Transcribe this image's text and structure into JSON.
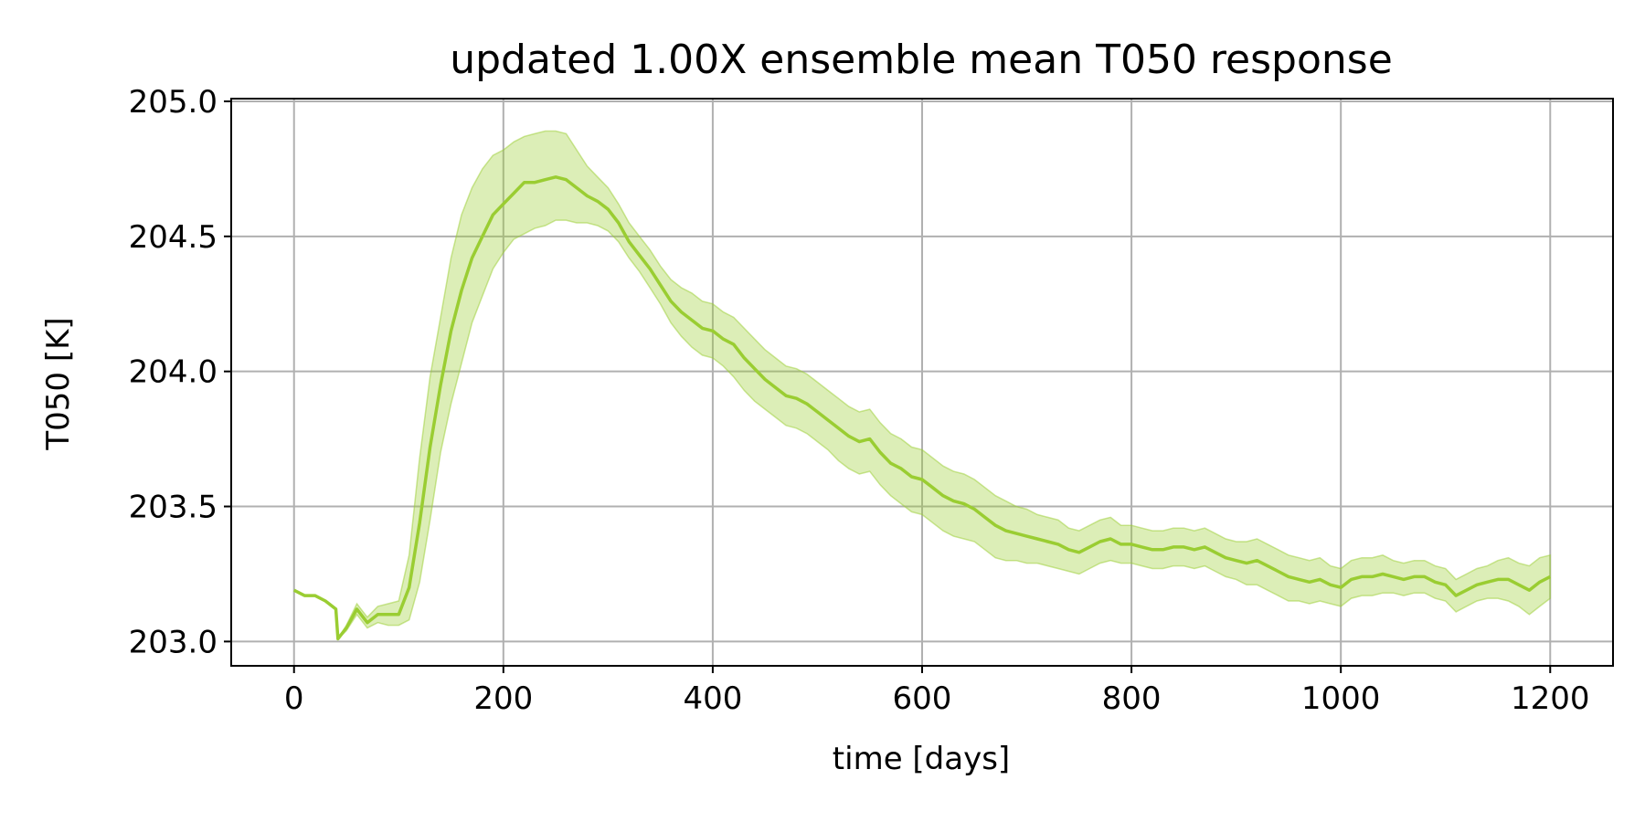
{
  "chart_data": {
    "type": "line",
    "title": "updated 1.00X ensemble mean T050 response",
    "xlabel": "time [days]",
    "ylabel": "T050 [K]",
    "xlim": [
      -60,
      1260
    ],
    "ylim": [
      202.91,
      205.01
    ],
    "xticks": [
      0,
      200,
      400,
      600,
      800,
      1000,
      1200
    ],
    "xtick_labels": [
      "0",
      "200",
      "400",
      "600",
      "800",
      "1000",
      "1200"
    ],
    "yticks": [
      203.0,
      203.5,
      204.0,
      204.5,
      205.0
    ],
    "ytick_labels": [
      "203.0",
      "203.5",
      "204.0",
      "204.5",
      "205.0"
    ],
    "grid": true,
    "legend": "none",
    "colors": {
      "line": "#9acd32",
      "band": "#9acd32"
    },
    "series": [
      {
        "x": [
          0,
          10,
          20,
          30,
          40,
          42,
          50,
          60,
          70,
          80,
          90,
          100,
          110,
          120,
          130,
          140,
          150,
          160,
          170,
          180,
          190,
          200,
          210,
          220,
          230,
          240,
          250,
          260,
          270,
          280,
          290,
          300,
          310,
          320,
          330,
          340,
          350,
          360,
          370,
          380,
          390,
          400,
          410,
          420,
          430,
          440,
          450,
          460,
          470,
          480,
          490,
          500,
          510,
          520,
          530,
          540,
          550,
          560,
          570,
          580,
          590,
          600,
          610,
          620,
          630,
          640,
          650,
          660,
          670,
          680,
          690,
          700,
          710,
          720,
          730,
          740,
          750,
          760,
          770,
          780,
          790,
          800,
          810,
          820,
          830,
          840,
          850,
          860,
          870,
          880,
          890,
          900,
          910,
          920,
          930,
          940,
          950,
          960,
          970,
          980,
          990,
          1000,
          1010,
          1020,
          1030,
          1040,
          1050,
          1060,
          1070,
          1080,
          1090,
          1100,
          1110,
          1120,
          1130,
          1140,
          1150,
          1160,
          1170,
          1180,
          1190,
          1200
        ],
        "y": [
          203.19,
          203.17,
          203.17,
          203.15,
          203.12,
          203.01,
          203.05,
          203.12,
          203.07,
          203.1,
          203.1,
          203.1,
          203.2,
          203.44,
          203.72,
          203.95,
          204.15,
          204.3,
          204.42,
          204.5,
          204.58,
          204.62,
          204.66,
          204.7,
          204.7,
          204.71,
          204.72,
          204.71,
          204.68,
          204.65,
          204.63,
          204.6,
          204.55,
          204.48,
          204.43,
          204.38,
          204.32,
          204.26,
          204.22,
          204.19,
          204.16,
          204.15,
          204.12,
          204.1,
          204.05,
          204.01,
          203.97,
          203.94,
          203.91,
          203.9,
          203.88,
          203.85,
          203.82,
          203.79,
          203.76,
          203.74,
          203.75,
          203.7,
          203.66,
          203.64,
          203.61,
          203.6,
          203.57,
          203.54,
          203.52,
          203.51,
          203.49,
          203.46,
          203.43,
          203.41,
          203.4,
          203.39,
          203.38,
          203.37,
          203.36,
          203.34,
          203.33,
          203.35,
          203.37,
          203.38,
          203.36,
          203.36,
          203.35,
          203.34,
          203.34,
          203.35,
          203.35,
          203.34,
          203.35,
          203.33,
          203.31,
          203.3,
          203.29,
          203.3,
          203.28,
          203.26,
          203.24,
          203.23,
          203.22,
          203.23,
          203.21,
          203.2,
          203.23,
          203.24,
          203.24,
          203.25,
          203.24,
          203.23,
          203.24,
          203.24,
          203.22,
          203.21,
          203.17,
          203.19,
          203.21,
          203.22,
          203.23,
          203.23,
          203.21,
          203.19,
          203.22,
          203.24
        ],
        "lower": [
          203.19,
          203.17,
          203.17,
          203.15,
          203.12,
          203.01,
          203.04,
          203.1,
          203.05,
          203.07,
          203.06,
          203.06,
          203.08,
          203.22,
          203.45,
          203.7,
          203.88,
          204.03,
          204.18,
          204.28,
          204.38,
          204.44,
          204.49,
          204.51,
          204.53,
          204.54,
          204.56,
          204.56,
          204.55,
          204.55,
          204.54,
          204.52,
          204.48,
          204.42,
          204.37,
          204.31,
          204.25,
          204.18,
          204.13,
          204.09,
          204.06,
          204.05,
          204.02,
          203.98,
          203.93,
          203.89,
          203.86,
          203.83,
          203.8,
          203.79,
          203.77,
          203.74,
          203.71,
          203.67,
          203.64,
          203.62,
          203.63,
          203.58,
          203.54,
          203.51,
          203.48,
          203.47,
          203.44,
          203.41,
          203.39,
          203.38,
          203.37,
          203.34,
          203.31,
          203.3,
          203.3,
          203.29,
          203.29,
          203.28,
          203.27,
          203.26,
          203.25,
          203.27,
          203.29,
          203.3,
          203.29,
          203.29,
          203.28,
          203.27,
          203.27,
          203.28,
          203.28,
          203.27,
          203.28,
          203.26,
          203.24,
          203.23,
          203.21,
          203.21,
          203.19,
          203.17,
          203.15,
          203.15,
          203.14,
          203.15,
          203.14,
          203.13,
          203.16,
          203.17,
          203.17,
          203.18,
          203.18,
          203.17,
          203.18,
          203.18,
          203.16,
          203.15,
          203.11,
          203.13,
          203.15,
          203.16,
          203.16,
          203.15,
          203.13,
          203.1,
          203.13,
          203.16
        ],
        "upper": [
          203.19,
          203.17,
          203.17,
          203.15,
          203.12,
          203.01,
          203.06,
          203.14,
          203.09,
          203.13,
          203.14,
          203.15,
          203.32,
          203.68,
          203.98,
          204.2,
          204.42,
          204.58,
          204.68,
          204.75,
          204.8,
          204.82,
          204.85,
          204.87,
          204.88,
          204.89,
          204.89,
          204.88,
          204.82,
          204.76,
          204.72,
          204.68,
          204.62,
          204.55,
          204.5,
          204.45,
          204.39,
          204.34,
          204.31,
          204.29,
          204.26,
          204.25,
          204.22,
          204.2,
          204.16,
          204.12,
          204.08,
          204.05,
          204.02,
          204.01,
          203.99,
          203.96,
          203.93,
          203.9,
          203.87,
          203.85,
          203.86,
          203.81,
          203.77,
          203.75,
          203.72,
          203.71,
          203.68,
          203.65,
          203.63,
          203.62,
          203.6,
          203.57,
          203.54,
          203.52,
          203.5,
          203.49,
          203.47,
          203.46,
          203.45,
          203.42,
          203.41,
          203.43,
          203.45,
          203.46,
          203.43,
          203.43,
          203.42,
          203.41,
          203.41,
          203.42,
          203.42,
          203.41,
          203.42,
          203.4,
          203.38,
          203.37,
          203.37,
          203.38,
          203.36,
          203.34,
          203.32,
          203.31,
          203.3,
          203.31,
          203.28,
          203.27,
          203.3,
          203.31,
          203.31,
          203.32,
          203.3,
          203.29,
          203.3,
          203.3,
          203.28,
          203.27,
          203.23,
          203.25,
          203.27,
          203.28,
          203.3,
          203.31,
          203.29,
          203.28,
          203.31,
          203.32
        ]
      }
    ]
  }
}
